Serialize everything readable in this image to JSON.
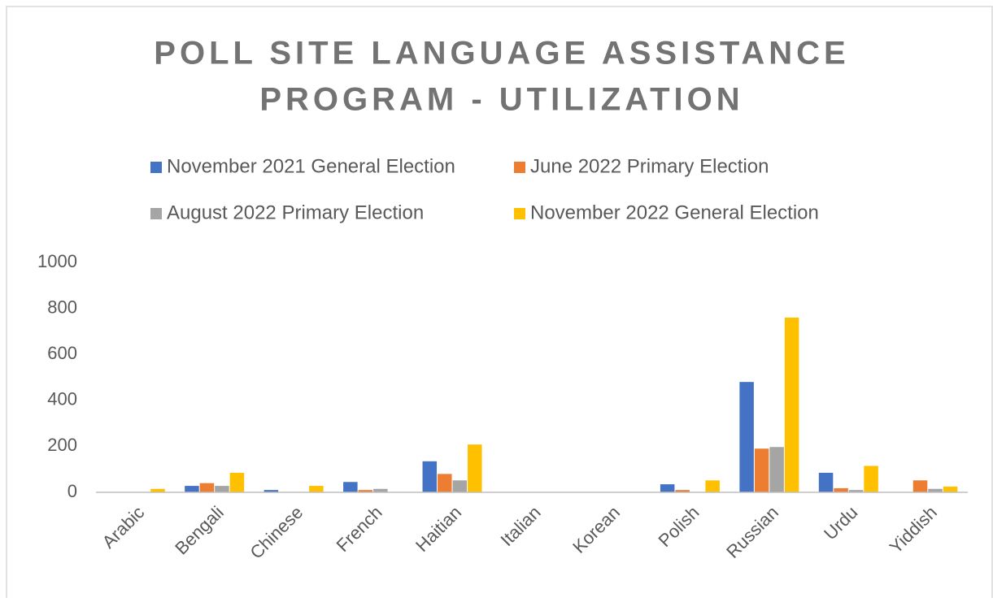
{
  "chart_data": {
    "type": "bar",
    "title": [
      "POLL SITE LANGUAGE ASSISTANCE",
      "PROGRAM - UTILIZATION"
    ],
    "categories": [
      "Arabic",
      "Bengali",
      "Chinese",
      "French",
      "Haitian",
      "Italian",
      "Korean",
      "Polish",
      "Russian",
      "Urdu",
      "Yiddish"
    ],
    "series": [
      {
        "name": "November 2021 General Election",
        "color": "#4472c4",
        "values": [
          0,
          28,
          10,
          45,
          135,
          0,
          0,
          35,
          480,
          85,
          0
        ]
      },
      {
        "name": "June 2022 Primary  Election",
        "color": "#ed7d31",
        "values": [
          0,
          40,
          0,
          10,
          80,
          0,
          0,
          10,
          190,
          18,
          52
        ]
      },
      {
        "name": "August 2022 Primary Election",
        "color": "#a5a5a5",
        "values": [
          0,
          28,
          0,
          15,
          52,
          0,
          0,
          0,
          197,
          10,
          15
        ]
      },
      {
        "name": "November 2022 General Election",
        "color": "#ffc000",
        "values": [
          15,
          85,
          28,
          0,
          208,
          0,
          0,
          52,
          760,
          115,
          25
        ]
      }
    ],
    "ylim": [
      0,
      1000
    ],
    "yticks": [
      0,
      200,
      400,
      600,
      800,
      1000
    ],
    "grid": false,
    "legend": "top"
  }
}
